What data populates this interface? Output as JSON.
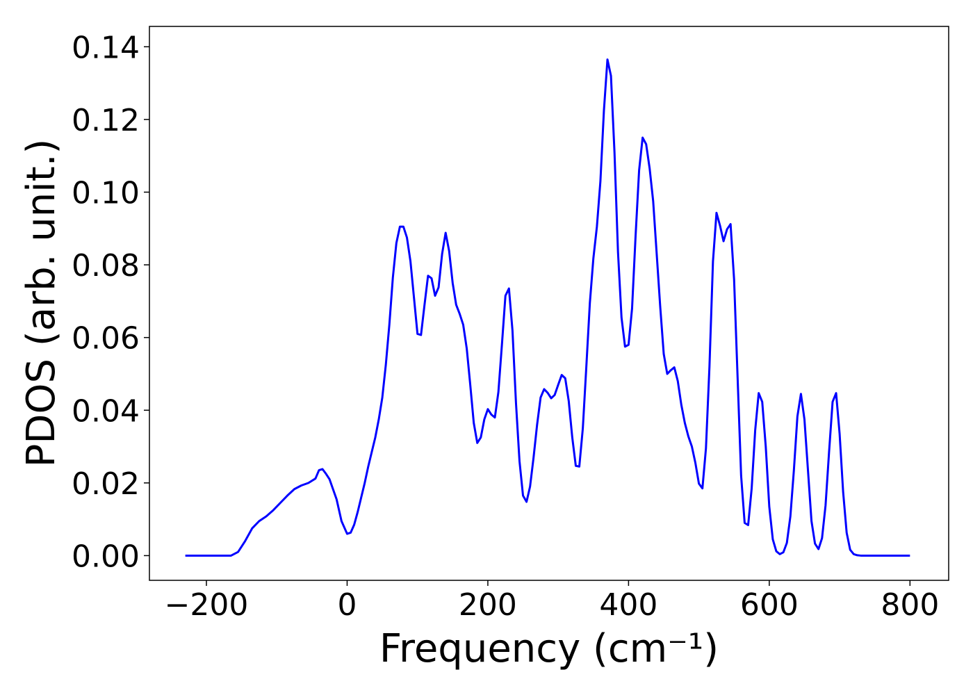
{
  "chart_data": {
    "type": "line",
    "xlabel": "Frequency (cm⁻¹)",
    "ylabel": "PDOS (arb. unit.)",
    "color": "#0000ff",
    "x": [
      -230,
      -200,
      -170,
      -165,
      -155,
      -145,
      -135,
      -125,
      -115,
      -105,
      -95,
      -85,
      -75,
      -65,
      -55,
      -45,
      -40,
      -35,
      -30,
      -25,
      -15,
      -8,
      0,
      5,
      10,
      15,
      20,
      25,
      30,
      35,
      40,
      45,
      50,
      55,
      60,
      65,
      70,
      75,
      80,
      85,
      90,
      100,
      105,
      110,
      115,
      120,
      125,
      130,
      135,
      140,
      145,
      150,
      155,
      160,
      165,
      170,
      175,
      180,
      185,
      190,
      195,
      200,
      205,
      210,
      215,
      220,
      225,
      230,
      235,
      240,
      245,
      250,
      255,
      260,
      265,
      270,
      275,
      280,
      285,
      290,
      295,
      300,
      305,
      310,
      315,
      320,
      325,
      330,
      335,
      340,
      345,
      350,
      355,
      360,
      365,
      370,
      375,
      380,
      385,
      390,
      395,
      400,
      405,
      410,
      415,
      420,
      425,
      430,
      435,
      440,
      445,
      450,
      455,
      460,
      465,
      470,
      475,
      480,
      485,
      490,
      495,
      500,
      505,
      510,
      515,
      520,
      525,
      530,
      535,
      540,
      545,
      550,
      555,
      560,
      565,
      570,
      575,
      580,
      585,
      590,
      595,
      600,
      605,
      610,
      615,
      620,
      625,
      630,
      635,
      640,
      645,
      650,
      655,
      660,
      665,
      670,
      675,
      680,
      685,
      690,
      695,
      700,
      705,
      710,
      715,
      720,
      725,
      730,
      760,
      800
    ],
    "values": [
      0,
      0,
      0,
      0,
      0.001,
      0.004,
      0.0075,
      0.0095,
      0.0108,
      0.0125,
      0.0145,
      0.0165,
      0.0183,
      0.0193,
      0.02,
      0.0212,
      0.0235,
      0.0238,
      0.0225,
      0.021,
      0.0155,
      0.0095,
      0.006,
      0.0063,
      0.0085,
      0.012,
      0.016,
      0.02,
      0.0245,
      0.0285,
      0.0325,
      0.0375,
      0.0435,
      0.0525,
      0.0635,
      0.0765,
      0.086,
      0.0905,
      0.0905,
      0.0875,
      0.081,
      0.061,
      0.0607,
      0.069,
      0.077,
      0.0763,
      0.0715,
      0.0738,
      0.083,
      0.0888,
      0.0838,
      0.075,
      0.069,
      0.0665,
      0.0635,
      0.057,
      0.047,
      0.0365,
      0.031,
      0.0325,
      0.0375,
      0.0403,
      0.0388,
      0.038,
      0.045,
      0.058,
      0.0715,
      0.0735,
      0.062,
      0.042,
      0.026,
      0.0165,
      0.0148,
      0.019,
      0.027,
      0.036,
      0.0435,
      0.0458,
      0.0448,
      0.0433,
      0.0442,
      0.047,
      0.0497,
      0.0488,
      0.0425,
      0.0325,
      0.0247,
      0.0245,
      0.035,
      0.052,
      0.0695,
      0.0818,
      0.0905,
      0.103,
      0.1225,
      0.1365,
      0.132,
      0.111,
      0.0835,
      0.0655,
      0.0575,
      0.058,
      0.068,
      0.088,
      0.106,
      0.115,
      0.1132,
      0.1065,
      0.0975,
      0.083,
      0.0685,
      0.0555,
      0.05,
      0.051,
      0.0518,
      0.048,
      0.0415,
      0.0365,
      0.0328,
      0.03,
      0.0255,
      0.0198,
      0.0185,
      0.0295,
      0.052,
      0.081,
      0.0943,
      0.0908,
      0.0865,
      0.0898,
      0.0912,
      0.076,
      0.049,
      0.022,
      0.009,
      0.0084,
      0.0185,
      0.0345,
      0.0447,
      0.0423,
      0.03,
      0.0135,
      0.0045,
      0.0012,
      0.0004,
      0.0009,
      0.0035,
      0.0108,
      0.0235,
      0.0383,
      0.0445,
      0.0375,
      0.0235,
      0.0095,
      0.0033,
      0.0018,
      0.0048,
      0.0138,
      0.0285,
      0.0423,
      0.0447,
      0.0335,
      0.0175,
      0.0063,
      0.0016,
      0.0004,
      0.0001,
      0,
      0,
      0
    ],
    "xlim": [
      -281,
      855
    ],
    "ylim": [
      -0.0068,
      0.1456
    ],
    "xticks": [
      {
        "value": -200,
        "label": "−200"
      },
      0,
      200,
      400,
      600,
      800
    ],
    "yticks": [
      {
        "value": 0,
        "label": "0.00"
      },
      0.02,
      0.04,
      0.06,
      0.08,
      {
        "value": 0.1,
        "label": "0.10"
      },
      0.12,
      0.14
    ],
    "grid": false
  }
}
